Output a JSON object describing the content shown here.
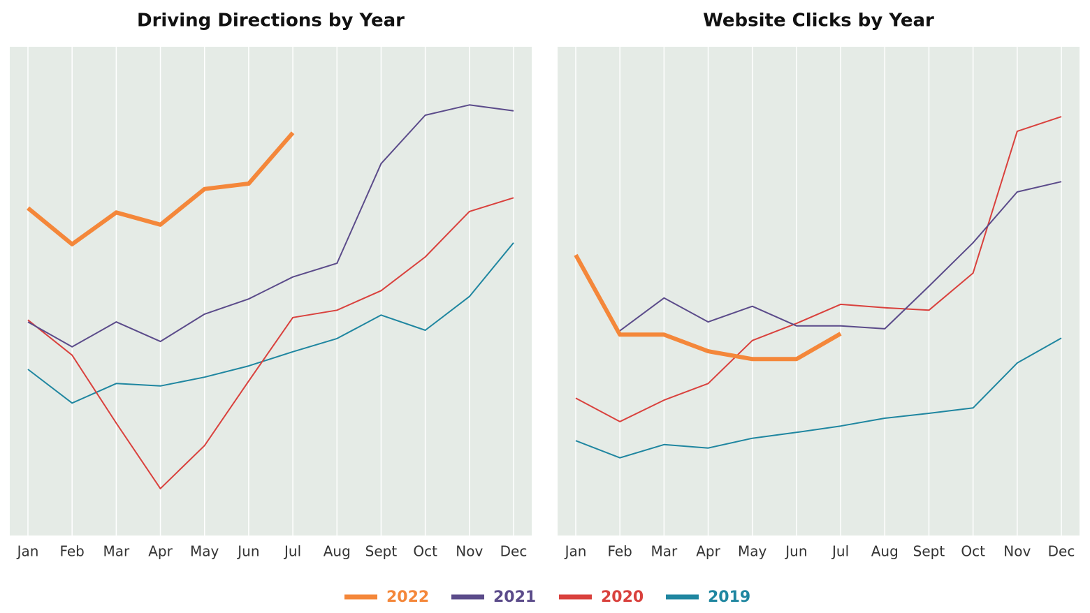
{
  "chart_data": [
    {
      "type": "line",
      "title": "Driving Directions by Year",
      "categories": [
        "Jan",
        "Feb",
        "Mar",
        "Apr",
        "May",
        "Jun",
        "Jul",
        "Aug",
        "Sept",
        "Oct",
        "Nov",
        "Dec"
      ],
      "ylim": [
        0,
        100
      ],
      "grid": true,
      "series": [
        {
          "values": [
            67,
            59.6,
            66.1,
            63.6,
            70.9,
            72,
            82.4,
            null,
            null,
            null,
            null,
            null
          ]
        },
        {
          "values": [
            43.7,
            38.6,
            43.7,
            39.7,
            45.3,
            48.4,
            52.9,
            55.7,
            76.1,
            86,
            88.1,
            86.9
          ]
        },
        {
          "values": [
            44.1,
            36.9,
            23,
            9.6,
            18.4,
            31.6,
            44.6,
            46.1,
            50.1,
            57,
            66.3,
            69.1
          ]
        },
        {
          "values": [
            34,
            27.1,
            31.1,
            30.6,
            32.4,
            34.7,
            37.6,
            40.3,
            45.1,
            42,
            48.9,
            59.9
          ]
        }
      ]
    },
    {
      "type": "line",
      "title": "Website Clicks by Year",
      "categories": [
        "Jan",
        "Feb",
        "Mar",
        "Apr",
        "May",
        "Jun",
        "Jul",
        "Aug",
        "Sept",
        "Oct",
        "Nov",
        "Dec"
      ],
      "ylim": [
        0,
        100
      ],
      "grid": true,
      "series": [
        {
          "values": [
            57.4,
            41.1,
            41.1,
            37.7,
            36.1,
            36.1,
            41.3,
            null,
            null,
            null,
            null,
            null
          ]
        },
        {
          "values": [
            null,
            41.9,
            48.6,
            43.7,
            46.9,
            42.9,
            42.9,
            42.3,
            51,
            59.9,
            70.3,
            72.4
          ]
        },
        {
          "values": [
            28.1,
            23.3,
            27.7,
            31.1,
            39.9,
            43.4,
            47.3,
            46.6,
            46.1,
            53.7,
            82.7,
            85.7
          ]
        },
        {
          "values": [
            19.4,
            15.9,
            18.6,
            17.9,
            19.9,
            21.1,
            22.4,
            24,
            25,
            26.1,
            35.3,
            40.4
          ]
        }
      ]
    }
  ],
  "legend": [
    {
      "name": "2022",
      "color": "#f4873a"
    },
    {
      "name": "2021",
      "color": "#5b4b8a"
    },
    {
      "name": "2020",
      "color": "#d9413d"
    },
    {
      "name": "2019",
      "color": "#1f86a0"
    }
  ]
}
